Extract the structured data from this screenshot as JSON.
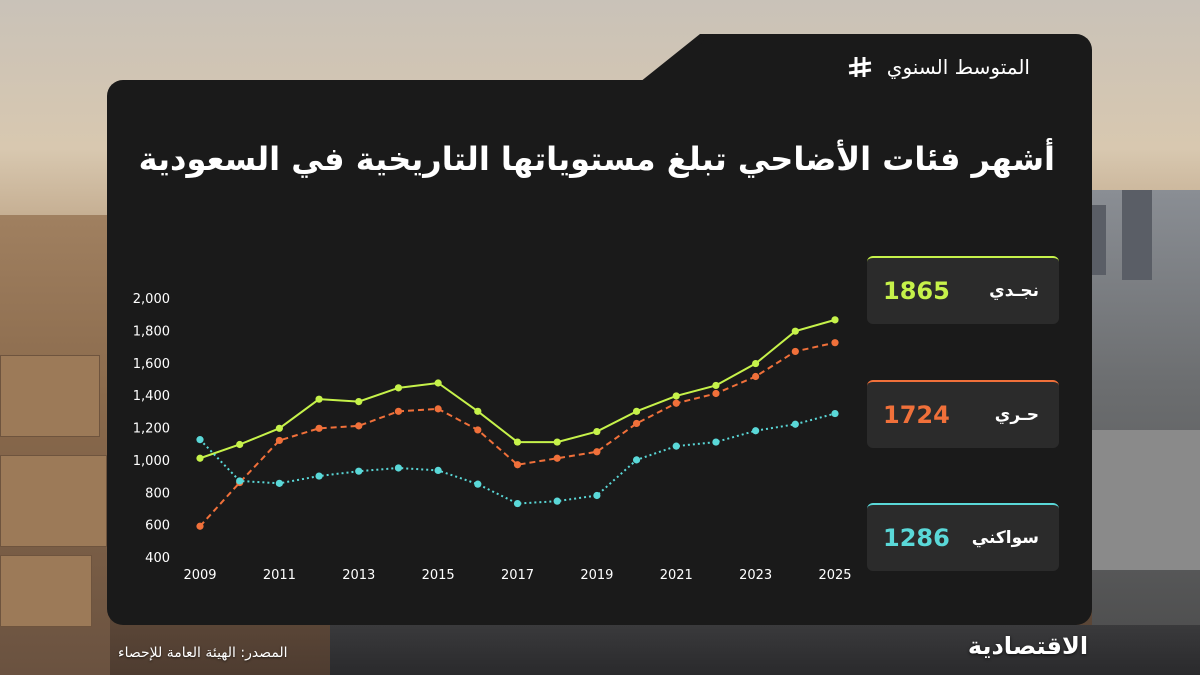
{
  "header": {
    "brand_label": "المتوسط السنوي",
    "title": "أشهر فئات الأضاحي تبلغ مستوياتها التاريخية في السعودية"
  },
  "colors": {
    "najdi": "#c6f24a",
    "harri": "#f0703a",
    "sawakni": "#5ad8d8",
    "card": "#1a1a1a"
  },
  "legend": [
    {
      "name": "نجـدي",
      "value": "1865",
      "color": "#c6f24a",
      "border": "#c6f24a"
    },
    {
      "name": "حـري",
      "value": "1724",
      "color": "#f0703a",
      "border": "#f0703a"
    },
    {
      "name": "سواكني",
      "value": "1286",
      "color": "#5ad8d8",
      "border": "#5ad8d8"
    }
  ],
  "chart_data": {
    "type": "line",
    "x": [
      2009,
      2010,
      2011,
      2012,
      2013,
      2014,
      2015,
      2016,
      2017,
      2018,
      2019,
      2020,
      2021,
      2022,
      2023,
      2024,
      2025
    ],
    "xticks": [
      "2009",
      "2011",
      "2013",
      "2015",
      "2017",
      "2019",
      "2021",
      "2023",
      "2025"
    ],
    "yticks": [
      "2,000",
      "1,800",
      "1,600",
      "1,400",
      "1,200",
      "1,000",
      "800",
      "600",
      "400"
    ],
    "ylim": [
      400,
      2000
    ],
    "grid": false,
    "series": [
      {
        "name": "نجـدي",
        "style": "solid",
        "color": "#c6f24a",
        "values": [
          1010,
          1095,
          1195,
          1375,
          1360,
          1445,
          1475,
          1300,
          1110,
          1110,
          1175,
          1300,
          1395,
          1460,
          1595,
          1795,
          1865
        ]
      },
      {
        "name": "حـري",
        "style": "dashed",
        "color": "#f0703a",
        "values": [
          590,
          860,
          1120,
          1195,
          1210,
          1300,
          1315,
          1185,
          970,
          1010,
          1050,
          1225,
          1350,
          1410,
          1515,
          1670,
          1724
        ]
      },
      {
        "name": "سواكني",
        "style": "dotted",
        "color": "#5ad8d8",
        "values": [
          1125,
          870,
          855,
          900,
          930,
          950,
          935,
          850,
          730,
          745,
          780,
          1000,
          1085,
          1110,
          1180,
          1220,
          1286
        ]
      }
    ]
  },
  "footer": {
    "source": "المصدر: الهيئة العامة للإحصاء",
    "publisher": "الاقتصادية"
  }
}
